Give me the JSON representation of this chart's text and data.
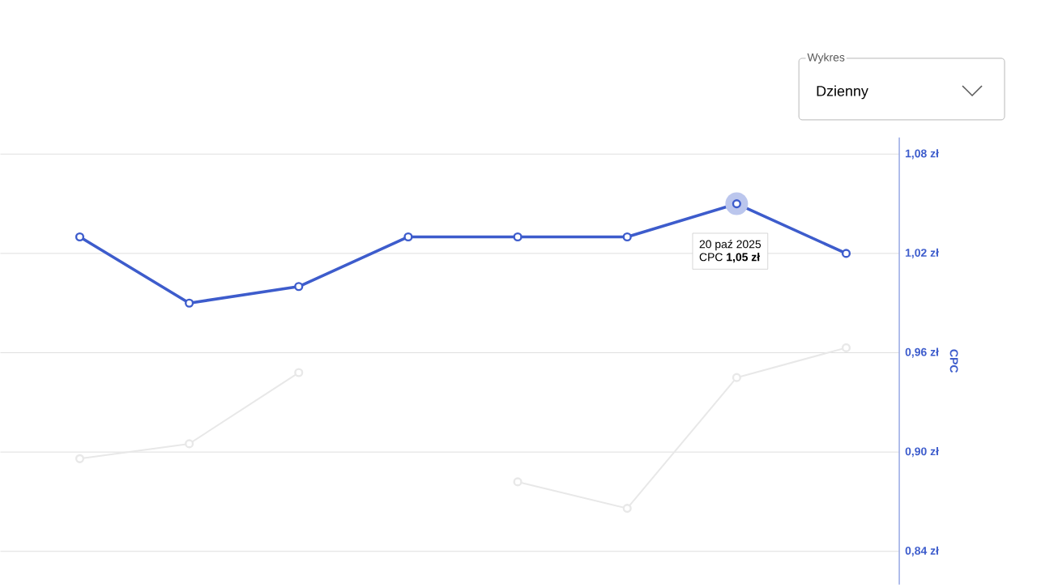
{
  "chart_data": {
    "type": "line",
    "ylabel": "CPC",
    "categories": [
      null,
      null,
      null,
      null,
      null,
      null,
      null,
      null
    ],
    "series": [
      {
        "color": "#e8e8e8",
        "values": [
          0.896,
          0.905,
          0.948,
          null,
          0.882,
          0.866,
          0.945,
          0.963
        ]
      },
      {
        "color": "#3d5ccc",
        "values": [
          1.03,
          0.99,
          1.0,
          1.03,
          1.03,
          1.03,
          1.05,
          1.02
        ]
      }
    ],
    "ylim": [
      0.82,
      1.09
    ],
    "yticks": [
      {
        "value": 0.84,
        "label": "0,84 zł"
      },
      {
        "value": 0.9,
        "label": "0,90 zł"
      },
      {
        "value": 0.96,
        "label": "0,96 zł"
      },
      {
        "value": 1.02,
        "label": "1,02 zł"
      },
      {
        "value": 1.08,
        "label": "1,08 zł"
      }
    ],
    "grid": "y",
    "marker": "circle",
    "line_style": "solid",
    "annotations": [
      "Wykres",
      "Dzienny",
      "20 paź 2025",
      "CPC **1,05 zł**"
    ]
  }
}
